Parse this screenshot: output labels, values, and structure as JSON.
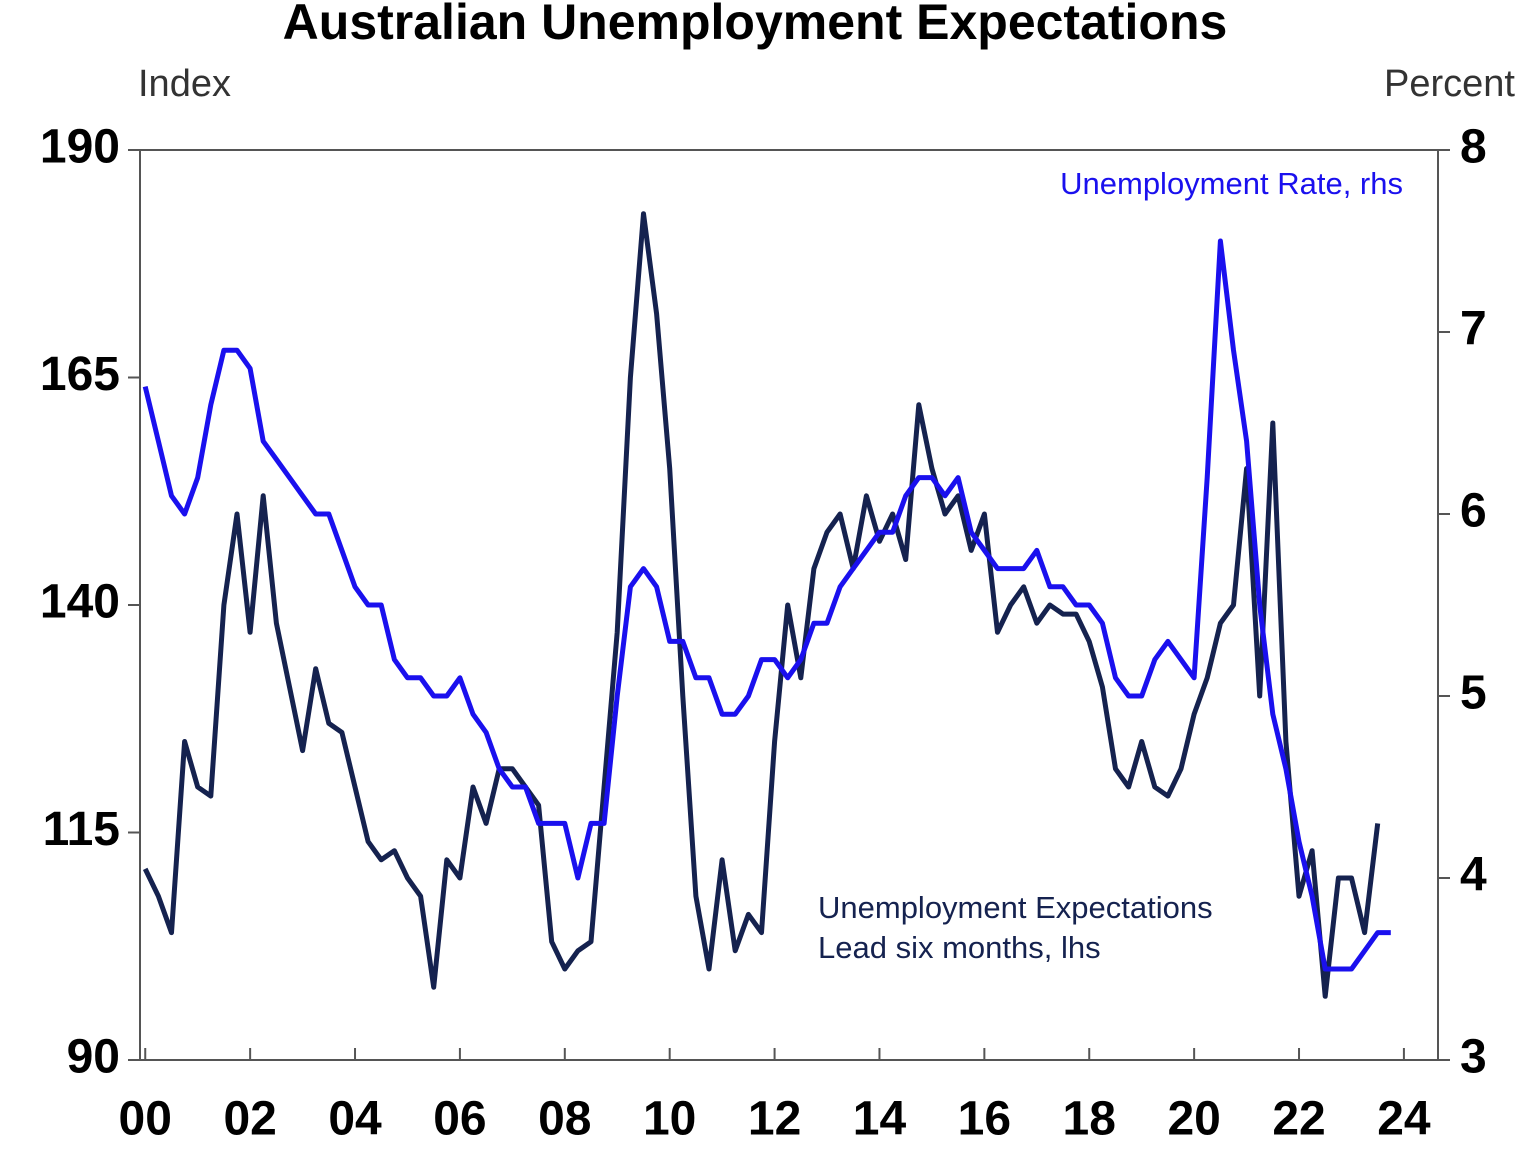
{
  "chart_data": {
    "type": "line",
    "title": "Australian Unemployment Expectations",
    "y_label": "Index",
    "y2_label": "Percent",
    "annotation": "Lead six months, lhs",
    "x": [
      2000,
      2000.25,
      2000.5,
      2000.75,
      2001,
      2001.25,
      2001.5,
      2001.75,
      2002,
      2002.25,
      2002.5,
      2002.75,
      2003,
      2003.25,
      2003.5,
      2003.75,
      2004,
      2004.25,
      2004.5,
      2004.75,
      2005,
      2005.25,
      2005.5,
      2005.75,
      2006,
      2006.25,
      2006.5,
      2006.75,
      2007,
      2007.25,
      2007.5,
      2007.75,
      2008,
      2008.25,
      2008.5,
      2008.75,
      2009,
      2009.25,
      2009.5,
      2009.75,
      2010,
      2010.25,
      2010.5,
      2010.75,
      2011,
      2011.25,
      2011.5,
      2011.75,
      2012,
      2012.25,
      2012.5,
      2012.75,
      2013,
      2013.25,
      2013.5,
      2013.75,
      2014,
      2014.25,
      2014.5,
      2014.75,
      2015,
      2015.25,
      2015.5,
      2015.75,
      2016,
      2016.25,
      2016.5,
      2016.75,
      2017,
      2017.25,
      2017.5,
      2017.75,
      2018,
      2018.25,
      2018.5,
      2018.75,
      2019,
      2019.25,
      2019.5,
      2019.75,
      2020,
      2020.25,
      2020.5,
      2020.75,
      2021,
      2021.25,
      2021.5,
      2021.75,
      2022,
      2022.25,
      2022.5,
      2022.75,
      2023,
      2023.25,
      2023.5,
      2023.75
    ],
    "series": [
      {
        "name": "Unemployment Expectations",
        "color": "#15224f",
        "axis": "y",
        "values": [
          111,
          108,
          104,
          125,
          120,
          119,
          140,
          150,
          137,
          152,
          138,
          131,
          124,
          133,
          127,
          126,
          120,
          114,
          112,
          113,
          110,
          108,
          98,
          112,
          110,
          120,
          116,
          122,
          122,
          120,
          118,
          103,
          100,
          102,
          103,
          120,
          137,
          165,
          183,
          172,
          155,
          130,
          108,
          100,
          112,
          102,
          106,
          104,
          125,
          140,
          132,
          144,
          148,
          150,
          144,
          152,
          147,
          150,
          145,
          162,
          155,
          150,
          152,
          146,
          150,
          137,
          140,
          142,
          138,
          140,
          139,
          139,
          136,
          131,
          122,
          120,
          125,
          120,
          119,
          122,
          128,
          132,
          138,
          140,
          155,
          130,
          160,
          125,
          108,
          113,
          97,
          110,
          110,
          104,
          116,
          null
        ]
      },
      {
        "name": "Unemployment Rate, rhs",
        "color": "#1a10ee",
        "axis": "y2",
        "values": [
          6.7,
          6.4,
          6.1,
          6.0,
          6.2,
          6.6,
          6.9,
          6.9,
          6.8,
          6.4,
          6.3,
          6.2,
          6.1,
          6.0,
          6.0,
          5.8,
          5.6,
          5.5,
          5.5,
          5.2,
          5.1,
          5.1,
          5.0,
          5.0,
          5.1,
          4.9,
          4.8,
          4.6,
          4.5,
          4.5,
          4.3,
          4.3,
          4.3,
          4.0,
          4.3,
          4.3,
          5.0,
          5.6,
          5.7,
          5.6,
          5.3,
          5.3,
          5.1,
          5.1,
          4.9,
          4.9,
          5.0,
          5.2,
          5.2,
          5.1,
          5.2,
          5.4,
          5.4,
          5.6,
          5.7,
          5.8,
          5.9,
          5.9,
          6.1,
          6.2,
          6.2,
          6.1,
          6.2,
          5.9,
          5.8,
          5.7,
          5.7,
          5.7,
          5.8,
          5.6,
          5.6,
          5.5,
          5.5,
          5.4,
          5.1,
          5.0,
          5.0,
          5.2,
          5.3,
          5.2,
          5.1,
          6.2,
          7.5,
          6.9,
          6.4,
          5.5,
          4.9,
          4.6,
          4.2,
          3.9,
          3.5,
          3.5,
          3.5,
          3.6,
          3.7,
          3.7
        ]
      }
    ],
    "xlim": [
      1999.9,
      2024.65
    ],
    "xticks": [
      {
        "value": 2000,
        "label": "00"
      },
      {
        "value": 2002,
        "label": "02"
      },
      {
        "value": 2004,
        "label": "04"
      },
      {
        "value": 2006,
        "label": "06"
      },
      {
        "value": 2008,
        "label": "08"
      },
      {
        "value": 2010,
        "label": "10"
      },
      {
        "value": 2012,
        "label": "12"
      },
      {
        "value": 2014,
        "label": "14"
      },
      {
        "value": 2016,
        "label": "16"
      },
      {
        "value": 2018,
        "label": "18"
      },
      {
        "value": 2020,
        "label": "20"
      },
      {
        "value": 2022,
        "label": "22"
      },
      {
        "value": 2024,
        "label": "24"
      }
    ],
    "ylim": [
      90,
      190
    ],
    "yticks": [
      90,
      115,
      140,
      165,
      190
    ],
    "y2lim": [
      3,
      8
    ],
    "y2ticks": [
      3,
      4,
      5,
      6,
      7,
      8
    ]
  }
}
